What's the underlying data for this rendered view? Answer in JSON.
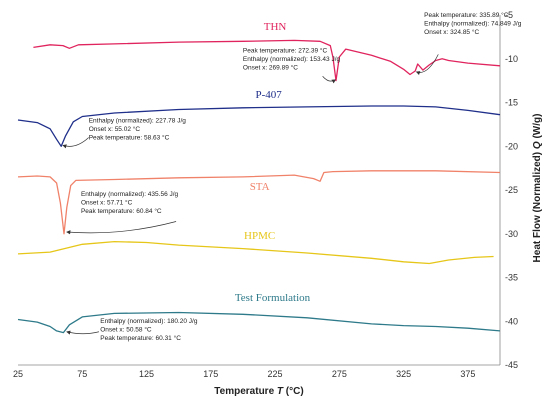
{
  "chart_data": {
    "type": "line",
    "xlabel_prefix": "Temperature ",
    "xlabel_var": "T",
    "xlabel_unit": " (°C)",
    "ylabel_prefix": "Heat Flow (Normalized) ",
    "ylabel_var": "Q",
    "ylabel_unit": " (W/g)",
    "xlim": [
      25,
      400
    ],
    "ylim": [
      -45,
      -5
    ],
    "x_ticks": [
      25,
      75,
      125,
      175,
      225,
      275,
      325,
      375
    ],
    "y_ticks": [
      -5,
      -10,
      -15,
      -20,
      -25,
      -30,
      -35,
      -40,
      -45
    ],
    "series": [
      {
        "name": "THN",
        "color": "#e0245e",
        "label_at": [
          225,
          -6.7
        ],
        "points": [
          [
            37,
            -8.7
          ],
          [
            50,
            -8.4
          ],
          [
            60,
            -8.5
          ],
          [
            65,
            -8.8
          ],
          [
            72,
            -8.4
          ],
          [
            100,
            -8.3
          ],
          [
            150,
            -8.1
          ],
          [
            200,
            -8.0
          ],
          [
            240,
            -7.9
          ],
          [
            260,
            -8.0
          ],
          [
            268,
            -8.5
          ],
          [
            270,
            -9.8
          ],
          [
            272.4,
            -12.5
          ],
          [
            275,
            -9.8
          ],
          [
            280,
            -8.9
          ],
          [
            300,
            -9.6
          ],
          [
            315,
            -10.3
          ],
          [
            325,
            -11.2
          ],
          [
            330,
            -11.8
          ],
          [
            334,
            -11.4
          ],
          [
            336,
            -10.6
          ],
          [
            340,
            -11.3
          ],
          [
            345,
            -10.7
          ],
          [
            350,
            -10.2
          ],
          [
            355,
            -10.0
          ],
          [
            360,
            -10.2
          ],
          [
            375,
            -10.5
          ],
          [
            400,
            -10.8
          ]
        ]
      },
      {
        "name": "P-407",
        "color": "#1f2f8a",
        "label_at": [
          220,
          -14.5
        ],
        "points": [
          [
            25,
            -17.0
          ],
          [
            40,
            -17.3
          ],
          [
            50,
            -18.0
          ],
          [
            55,
            -19.2
          ],
          [
            58.6,
            -20.0
          ],
          [
            62,
            -18.8
          ],
          [
            68,
            -17.2
          ],
          [
            75,
            -16.6
          ],
          [
            100,
            -16.2
          ],
          [
            150,
            -15.8
          ],
          [
            200,
            -15.6
          ],
          [
            250,
            -15.5
          ],
          [
            300,
            -15.4
          ],
          [
            325,
            -15.4
          ],
          [
            350,
            -15.5
          ],
          [
            375,
            -15.9
          ],
          [
            400,
            -16.4
          ]
        ]
      },
      {
        "name": "STA",
        "color": "#f0826a",
        "label_at": [
          213,
          -25.0
        ],
        "points": [
          [
            25,
            -23.5
          ],
          [
            40,
            -23.4
          ],
          [
            50,
            -23.5
          ],
          [
            55,
            -24.2
          ],
          [
            58,
            -26.5
          ],
          [
            60.8,
            -30.0
          ],
          [
            63,
            -27.0
          ],
          [
            66,
            -24.5
          ],
          [
            70,
            -23.9
          ],
          [
            100,
            -23.8
          ],
          [
            150,
            -23.6
          ],
          [
            200,
            -23.5
          ],
          [
            240,
            -23.3
          ],
          [
            255,
            -23.7
          ],
          [
            260,
            -24.0
          ],
          [
            263,
            -23.0
          ],
          [
            270,
            -22.9
          ],
          [
            300,
            -22.8
          ],
          [
            350,
            -22.8
          ],
          [
            400,
            -23.0
          ]
        ]
      },
      {
        "name": "HPMC",
        "color": "#e6c619",
        "label_at": [
          213,
          -30.6
        ],
        "points": [
          [
            25,
            -32.3
          ],
          [
            50,
            -32.1
          ],
          [
            75,
            -31.2
          ],
          [
            100,
            -30.9
          ],
          [
            125,
            -31.0
          ],
          [
            150,
            -31.3
          ],
          [
            200,
            -31.7
          ],
          [
            250,
            -32.2
          ],
          [
            300,
            -32.8
          ],
          [
            325,
            -33.2
          ],
          [
            345,
            -33.4
          ],
          [
            360,
            -33.0
          ],
          [
            380,
            -32.7
          ],
          [
            395,
            -32.6
          ]
        ]
      },
      {
        "name": "Test Formulation",
        "color": "#2e7a8a",
        "label_at": [
          223,
          -37.7
        ],
        "points": [
          [
            25,
            -39.8
          ],
          [
            40,
            -40.1
          ],
          [
            50,
            -40.6
          ],
          [
            55,
            -41.1
          ],
          [
            60.3,
            -41.3
          ],
          [
            65,
            -40.4
          ],
          [
            75,
            -39.5
          ],
          [
            100,
            -39.1
          ],
          [
            150,
            -39.0
          ],
          [
            200,
            -39.2
          ],
          [
            250,
            -39.6
          ],
          [
            300,
            -40.3
          ],
          [
            325,
            -40.5
          ],
          [
            350,
            -40.6
          ],
          [
            375,
            -40.8
          ],
          [
            400,
            -41.1
          ]
        ]
      }
    ],
    "annotations": [
      {
        "lines": [
          "Peak temperature: 272.39 °C",
          "Enthalpy (normalized): 153.43 J/g",
          "Onset x: 269.89 °C"
        ],
        "text_at": [
          200,
          -9.3
        ],
        "arrow_from": [
          262,
          -12.0
        ],
        "arrow_to": [
          272,
          -12.4
        ]
      },
      {
        "lines": [
          "Peak temperature: 335.89 °C",
          "Enthalpy (normalized): 74.849 J/g",
          "Onset x: 324.85 °C"
        ],
        "text_at": [
          341,
          -5.2
        ],
        "arrow_from": [
          352,
          -9.5
        ],
        "arrow_to": [
          335,
          -11.5
        ]
      },
      {
        "lines": [
          "Enthalpy (normalized): 227.78 J/g",
          "Onset x: 55.02 °C",
          "Peak temperature: 58.63 °C"
        ],
        "text_at": [
          80,
          -17.3
        ],
        "arrow_from": [
          80,
          -19.0
        ],
        "arrow_to": [
          60,
          -19.9
        ]
      },
      {
        "lines": [
          "Enthalpy (normalized): 435.56 J/g",
          "Onset x: 57.71 °C",
          "Peak temperature: 60.84 °C"
        ],
        "text_at": [
          74,
          -25.7
        ],
        "arrow_from": [
          148,
          -28.6
        ],
        "arrow_to": [
          63,
          -29.8
        ]
      },
      {
        "lines": [
          "Enthalpy (normalized): 180.20 J/g",
          "Onset x: 50.58 °C",
          "Peak temperature: 60.31 °C"
        ],
        "text_at": [
          89,
          -40.2
        ],
        "arrow_from": [
          88,
          -41.2
        ],
        "arrow_to": [
          63,
          -41.2
        ]
      }
    ]
  }
}
